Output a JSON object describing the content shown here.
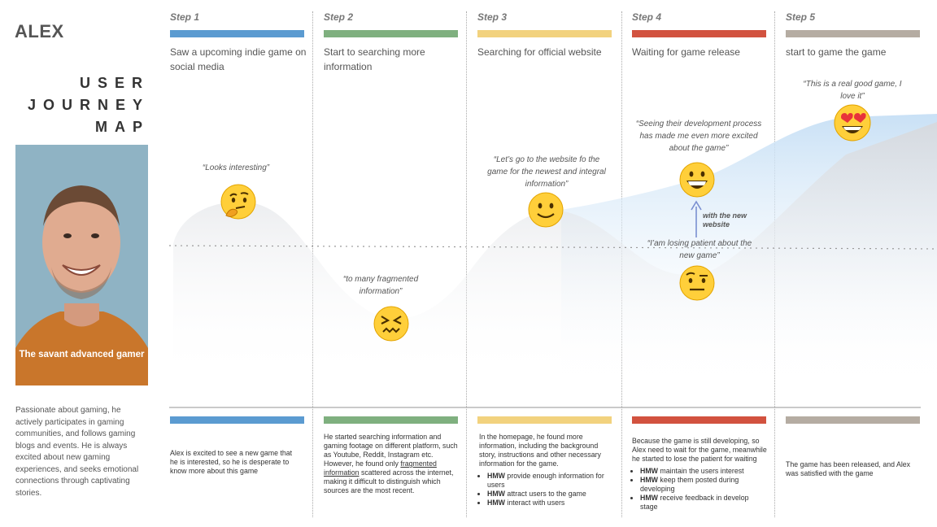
{
  "persona": {
    "name": "ALEX",
    "title_lines": [
      "USER",
      "JOURNEY",
      "MAP"
    ],
    "photo_caption": "The savant advanced gamer",
    "description": "Passionate about gaming, he actively participates in gaming communities, and follows gaming blogs and events.  He is always excited about new gaming experiences, and seeks emotional connections through captivating stories."
  },
  "steps": [
    {
      "label": "Step 1",
      "color": "#5b9bd1",
      "description": "Saw a upcoming indie game on social media",
      "quote": "“Looks interesting”",
      "emoji": "thinking-face-icon",
      "detail": "Alex is excited to see a new game that he is interested, so he is desperate to know more about this game"
    },
    {
      "label": "Step 2",
      "color": "#7fb07f",
      "description": "Start to searching more information",
      "quote": "“to many fragmented information”",
      "emoji": "confounded-face-icon",
      "detail_before": "He started searching information and gaming footage on different platform, such as Youtube, Reddit, Instagram etc. However, he found only ",
      "detail_link": "fragmented information",
      "detail_after": " scattered across the internet, making it difficult to distinguish which sources are the most recent."
    },
    {
      "label": "Step 3",
      "color": "#f2d27e",
      "description": "Searching for official website",
      "quote": "“Let’s go to the website fo the game for the newest and integral information”",
      "emoji": "slightly-smiling-face-icon",
      "detail": "In the homepage, he found more information, including the background story, instructions and other necessary information for the game.",
      "hmw": [
        {
          "tag": "HMW",
          "text": " provide enough information for users"
        },
        {
          "tag": "HMW",
          "text": " attract users to the game"
        },
        {
          "tag": "HMW",
          "text": " interact with users"
        }
      ]
    },
    {
      "label": "Step 4",
      "color": "#d2523f",
      "description": "Waiting for game release",
      "quote": "“Seeing their development process has made me even more excited about the game”",
      "quote_low": "“I’am losing patient about the new game”",
      "emoji": "grinning-face-icon",
      "emoji_low": "raised-eyebrow-face-icon",
      "improvement": "with the new website",
      "detail": "Because the game is still developing, so Alex need to wait for the game, meanwhile he started to lose the patient for waiting",
      "hmw": [
        {
          "tag": "HMW",
          "text": " maintain the users interest"
        },
        {
          "tag": "HMW",
          "text": " keep them posted during developing"
        },
        {
          "tag": "HMW",
          "text": " receive feedback in develop stage"
        }
      ]
    },
    {
      "label": "Step 5",
      "color": "#b5aca2",
      "description": "start to game the game",
      "quote": "“This is a real good game, I love it”",
      "emoji": "heart-eyes-face-icon",
      "detail": "The game has been released, and Alex was satisfied with the game"
    }
  ]
}
